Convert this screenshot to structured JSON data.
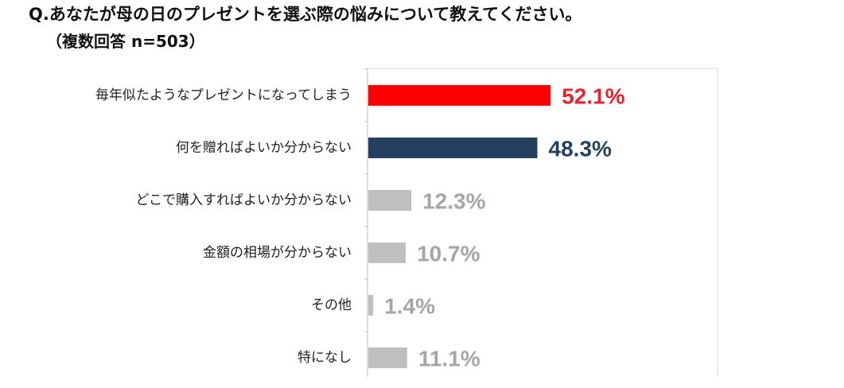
{
  "title": "Q.あなたが母の日のプレゼントを選ぶ際の悩みについて教えてください。",
  "subtitle": "（複数回答 n=503）",
  "chart_data": {
    "type": "bar",
    "orientation": "horizontal",
    "title": "Q.あなたが母の日のプレゼントを選ぶ際の悩みについて教えてください。",
    "subtitle": "（複数回答 n=503）",
    "categories": [
      "毎年似たようなプレゼントになってしまう",
      "何を贈ればよいか分からない",
      "どこで購入すればよいか分からない",
      "金額の相場が分からない",
      "その他",
      "特になし"
    ],
    "values": [
      52.1,
      48.3,
      12.3,
      10.7,
      1.4,
      11.1
    ],
    "value_labels": [
      "52.1%",
      "48.3%",
      "12.3%",
      "10.7%",
      "1.4%",
      "11.1%"
    ],
    "unit": "%",
    "xlim": [
      0,
      100
    ],
    "bar_colors": [
      "#FF0000",
      "#243F60",
      "#BFBFBF",
      "#BFBFBF",
      "#BFBFBF",
      "#BFBFBF"
    ],
    "label_colors": [
      "#E8232A",
      "#243F60",
      "#A6A6A6",
      "#A6A6A6",
      "#A6A6A6",
      "#A6A6A6"
    ],
    "grid": false,
    "legend": "none"
  }
}
